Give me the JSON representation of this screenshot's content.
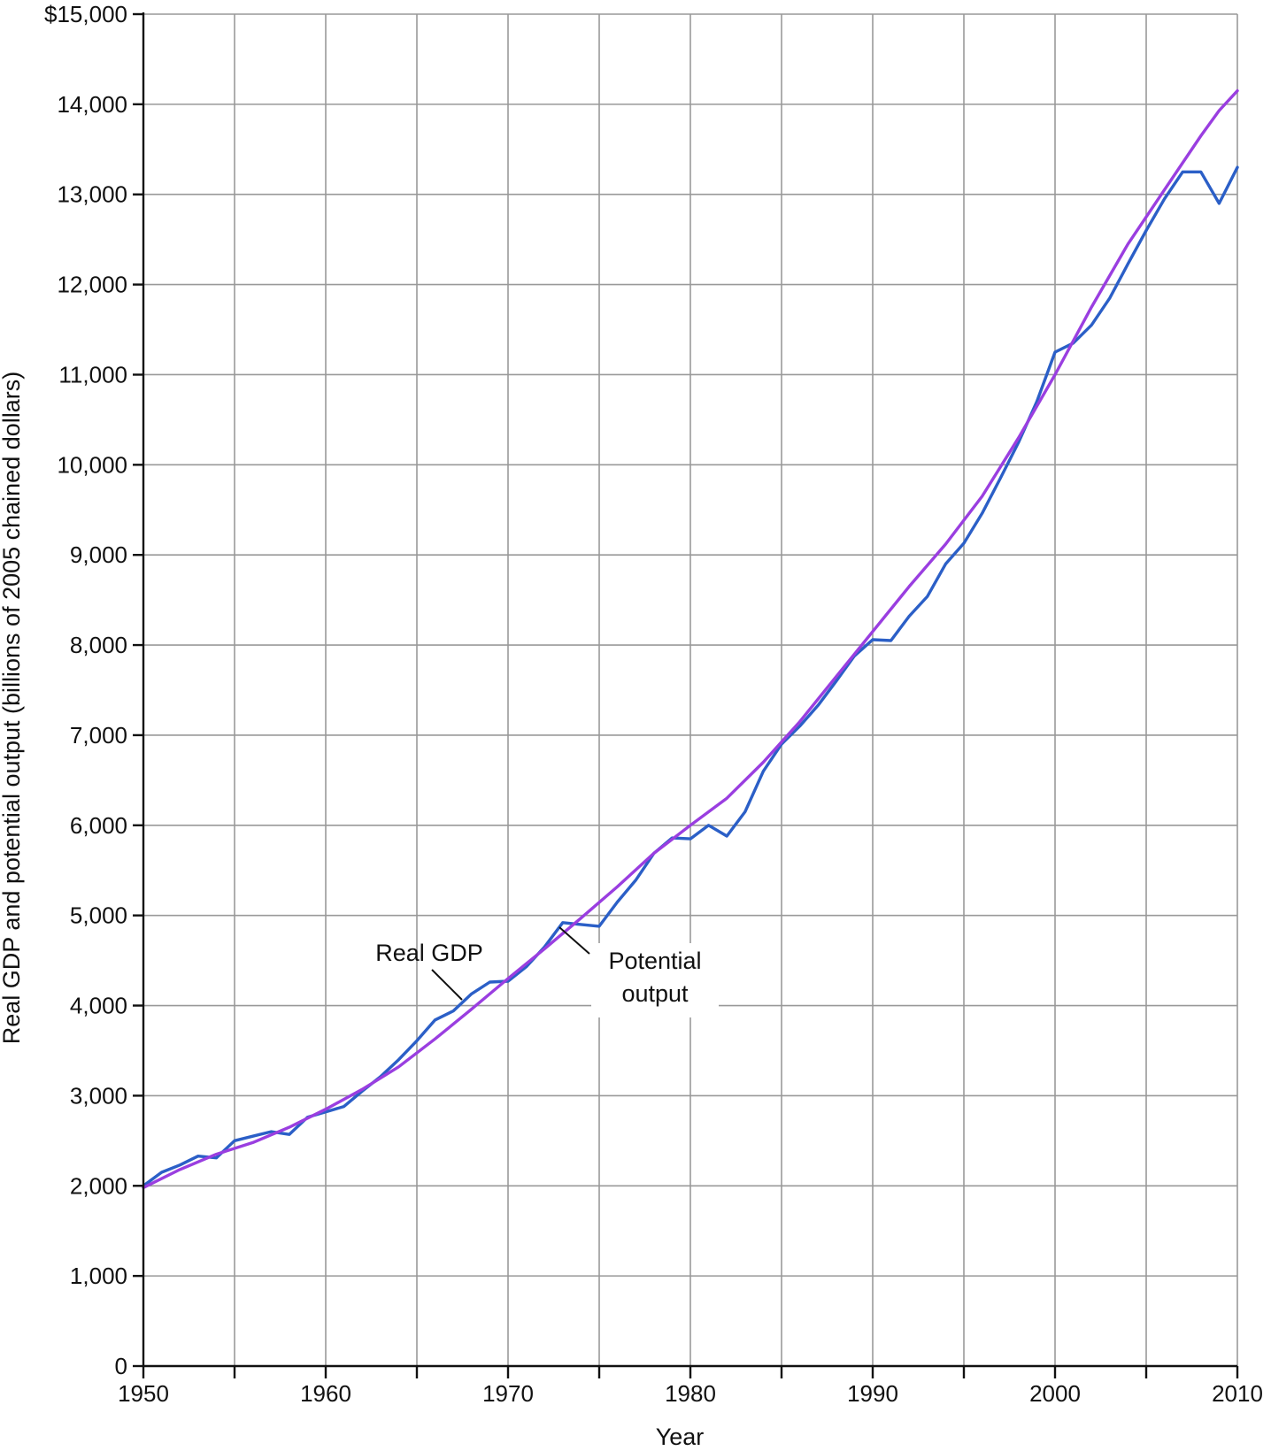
{
  "chart_data": {
    "type": "line",
    "title": "",
    "xlabel": "Year",
    "ylabel": "Real GDP and potential output (billions of 2005 chained dollars)",
    "xlim": [
      1950,
      2010
    ],
    "ylim": [
      0,
      15000
    ],
    "grid": true,
    "x_ticks": [
      1950,
      1960,
      1970,
      1980,
      1990,
      2000,
      2010
    ],
    "x_tick_labels": [
      "1950",
      "1960",
      "1970",
      "1980",
      "1990",
      "2000",
      "2010"
    ],
    "y_ticks": [
      0,
      1000,
      2000,
      3000,
      4000,
      5000,
      6000,
      7000,
      8000,
      9000,
      10000,
      11000,
      12000,
      13000,
      14000,
      15000
    ],
    "y_tick_labels": [
      "0",
      "1,000",
      "2,000",
      "3,000",
      "4,000",
      "5,000",
      "6,000",
      "7,000",
      "8,000",
      "9,000",
      "10,000",
      "11,000",
      "12,000",
      "13,000",
      "14,000",
      "$15,000"
    ],
    "series": [
      {
        "name": "Real GDP",
        "color": "#2b5fc7",
        "x": [
          1950,
          1951,
          1952,
          1953,
          1954,
          1955,
          1956,
          1957,
          1958,
          1959,
          1960,
          1961,
          1962,
          1963,
          1964,
          1965,
          1966,
          1967,
          1968,
          1969,
          1970,
          1971,
          1972,
          1973,
          1974,
          1975,
          1976,
          1977,
          1978,
          1979,
          1980,
          1981,
          1982,
          1983,
          1984,
          1985,
          1986,
          1987,
          1988,
          1989,
          1990,
          1991,
          1992,
          1993,
          1994,
          1995,
          1996,
          1997,
          1998,
          1999,
          2000,
          2001,
          2002,
          2003,
          2004,
          2005,
          2006,
          2007,
          2008,
          2009,
          2010
        ],
        "values": [
          2000,
          2150,
          2230,
          2330,
          2310,
          2500,
          2550,
          2600,
          2570,
          2760,
          2820,
          2880,
          3050,
          3210,
          3400,
          3610,
          3840,
          3940,
          4130,
          4260,
          4270,
          4430,
          4650,
          4920,
          4900,
          4880,
          5150,
          5390,
          5690,
          5860,
          5850,
          6000,
          5880,
          6150,
          6600,
          6900,
          7100,
          7330,
          7600,
          7880,
          8060,
          8050,
          8320,
          8540,
          8900,
          9130,
          9460,
          9850,
          10250,
          10700,
          11250,
          11350,
          11550,
          11850,
          12230,
          12600,
          12950,
          13250,
          13250,
          12900,
          13300
        ]
      },
      {
        "name": "Potential output",
        "color": "#9a3ee0",
        "x": [
          1950,
          1952,
          1954,
          1956,
          1958,
          1960,
          1962,
          1964,
          1966,
          1968,
          1970,
          1972,
          1974,
          1976,
          1978,
          1980,
          1982,
          1984,
          1986,
          1988,
          1990,
          1992,
          1994,
          1996,
          1998,
          2000,
          2002,
          2004,
          2006,
          2008,
          2009,
          2010
        ],
        "values": [
          1980,
          2180,
          2350,
          2480,
          2650,
          2850,
          3070,
          3320,
          3630,
          3960,
          4300,
          4630,
          4970,
          5320,
          5690,
          6000,
          6300,
          6700,
          7150,
          7650,
          8150,
          8650,
          9120,
          9650,
          10300,
          11000,
          11750,
          12450,
          13050,
          13650,
          13930,
          14150
        ]
      }
    ],
    "annotations": [
      {
        "text": "Real GDP",
        "series": "Real GDP"
      },
      {
        "text": "Potential",
        "series": "Potential output"
      },
      {
        "text": "output",
        "series": "Potential output"
      }
    ]
  }
}
